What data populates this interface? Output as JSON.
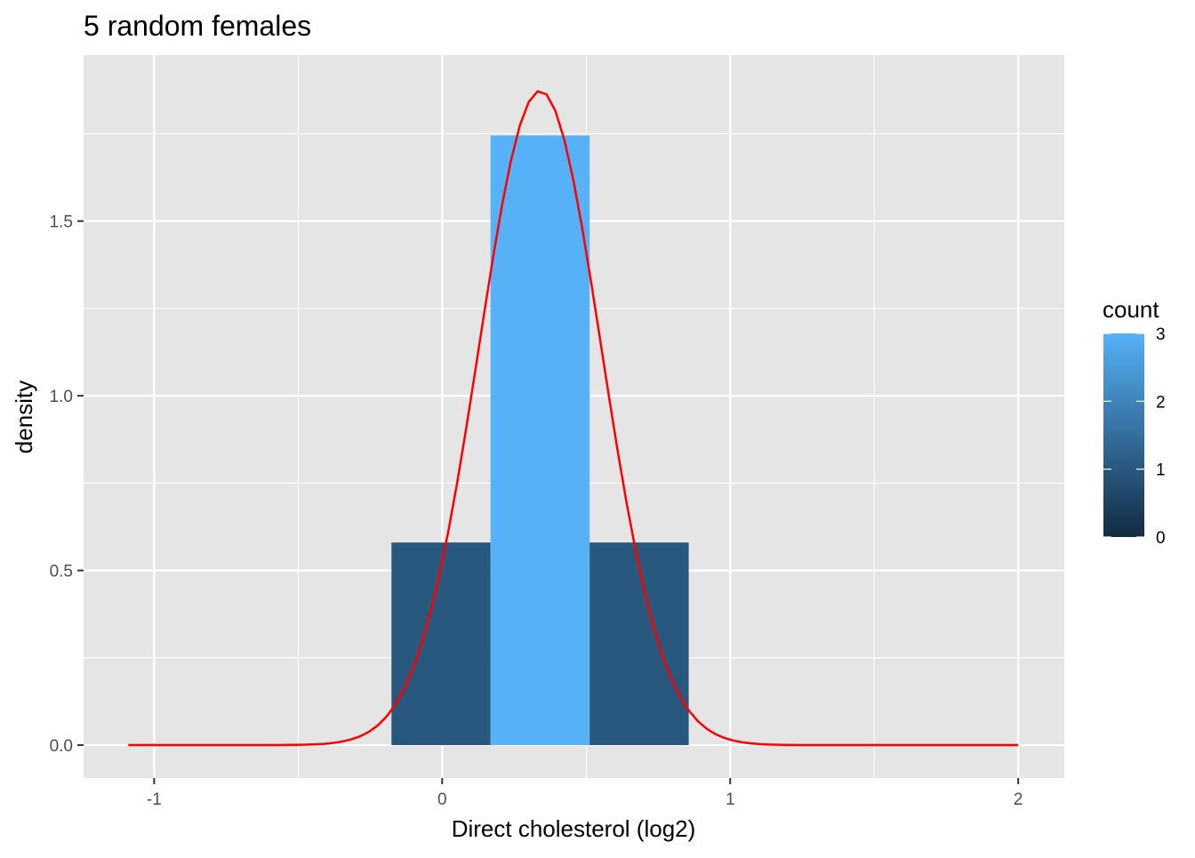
{
  "chart_data": {
    "type": "bar",
    "title": "5 random females",
    "xlabel": "Direct cholesterol (log2)",
    "ylabel": "density",
    "xlim": [
      -1.245,
      2.16
    ],
    "ylim": [
      -0.094,
      1.975
    ],
    "x_ticks": [
      -1,
      0,
      1,
      2
    ],
    "x_tick_labels": [
      "-1",
      "0",
      "1",
      "2"
    ],
    "y_ticks": [
      0.0,
      0.5,
      1.0,
      1.5
    ],
    "y_tick_labels": [
      "0.0",
      "0.5",
      "1.0",
      "1.5"
    ],
    "grid": true,
    "histogram": {
      "bins": [
        {
          "x0": -0.176,
          "x1": 0.168,
          "density": 0.58,
          "count": 1
        },
        {
          "x0": 0.168,
          "x1": 0.512,
          "density": 1.745,
          "count": 3
        },
        {
          "x0": 0.512,
          "x1": 0.856,
          "density": 0.58,
          "count": 1
        }
      ]
    },
    "density_curve": {
      "name": "normal density",
      "color": "#ff0000",
      "mean": 0.34,
      "sd": 0.213,
      "x_range": [
        -1.09,
        2.0
      ]
    },
    "legend": {
      "title": "count",
      "placement": "right",
      "ticks": [
        0,
        1,
        2,
        3
      ],
      "tick_labels": [
        "0",
        "1",
        "2",
        "3"
      ],
      "color_low": "#132b43",
      "color_high": "#56b1f7"
    },
    "colors": {
      "panel_background": "#e5e5e5",
      "grid": "#ffffff",
      "curve": "#ff0000"
    }
  }
}
